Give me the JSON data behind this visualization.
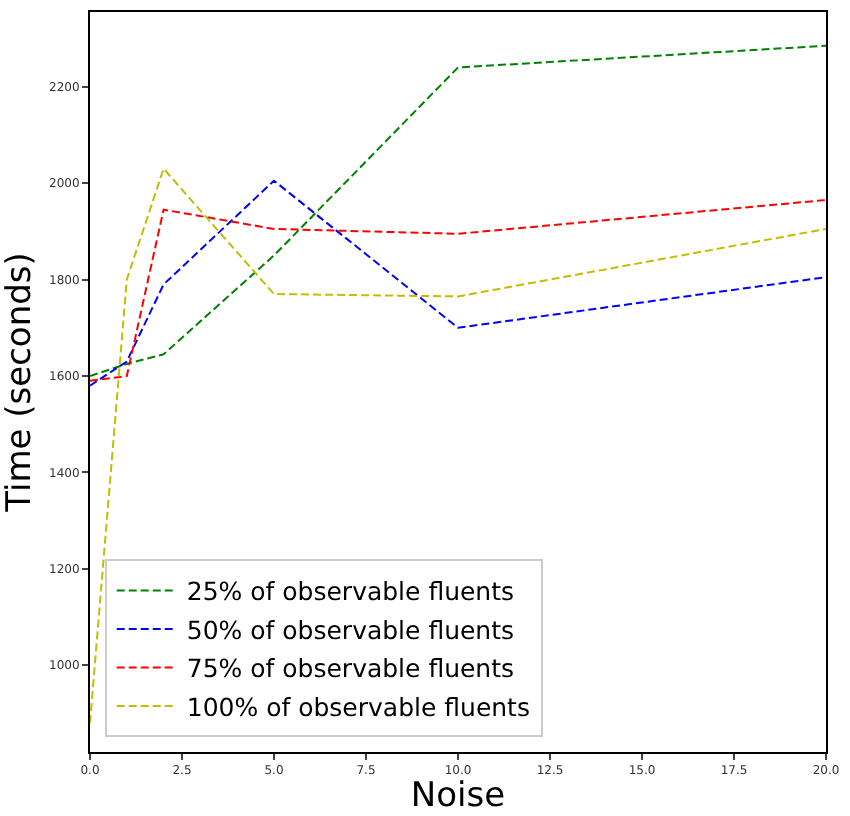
{
  "chart_data": {
    "type": "line",
    "xlabel": "Noise",
    "ylabel": "Time (seconds)",
    "xlim": [
      0,
      20
    ],
    "ylim": [
      820,
      2355
    ],
    "xticks": [
      {
        "value": 0,
        "label": "0.0"
      },
      {
        "value": 2.5,
        "label": "2.5"
      },
      {
        "value": 5,
        "label": "5.0"
      },
      {
        "value": 7.5,
        "label": "7.5"
      },
      {
        "value": 10,
        "label": "10.0"
      },
      {
        "value": 12.5,
        "label": "12.5"
      },
      {
        "value": 15,
        "label": "15.0"
      },
      {
        "value": 17.5,
        "label": "17.5"
      },
      {
        "value": 20,
        "label": "20.0"
      }
    ],
    "yticks": [
      1000,
      1200,
      1400,
      1600,
      1800,
      2000,
      2200
    ],
    "x": [
      0,
      1,
      2,
      5,
      10,
      20
    ],
    "series": [
      {
        "name": "25% of observable fluents",
        "color": "#008000",
        "values": [
          1600,
          1625,
          1645,
          1850,
          2240,
          2285
        ]
      },
      {
        "name": "50% of observable fluents",
        "color": "#0000ff",
        "values": [
          1580,
          1630,
          1790,
          2005,
          1700,
          1805
        ]
      },
      {
        "name": "75% of observable fluents",
        "color": "#ff0000",
        "values": [
          1590,
          1600,
          1945,
          1905,
          1895,
          1965
        ]
      },
      {
        "name": "100% of observable fluents",
        "color": "#bfbf00",
        "values": [
          880,
          1800,
          2030,
          1770,
          1765,
          1905
        ]
      }
    ],
    "legend": "bottom left",
    "line_style": "dashed",
    "marker": "none"
  }
}
